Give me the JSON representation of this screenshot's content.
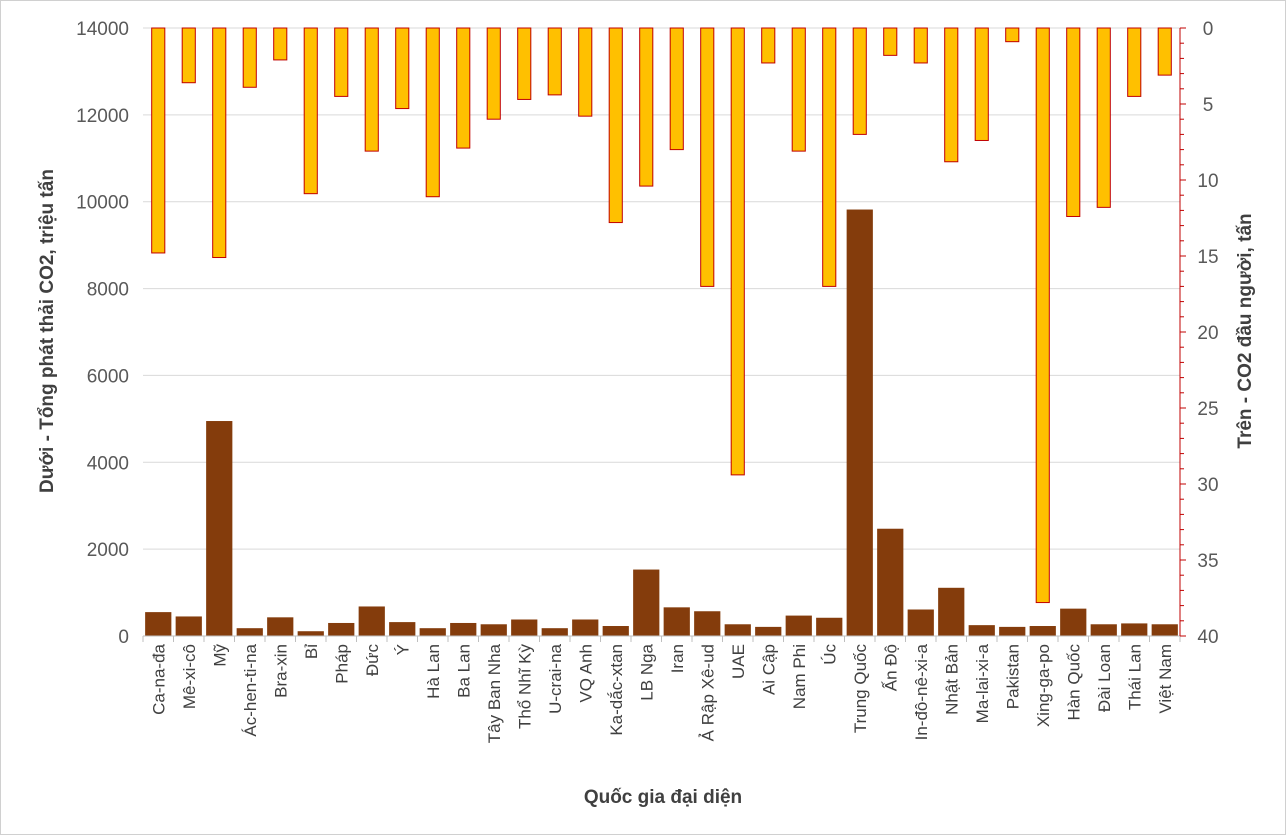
{
  "chart_data": {
    "type": "bar",
    "title": "",
    "xlabel": "Quốc gia đại diện",
    "ylabel_left": "Dưới - Tổng phát thải CO2, triệu tấn",
    "ylabel_right": "Trên - CO2 đầu người, tấn",
    "y_left_lim": [
      0,
      14000
    ],
    "y_left_ticks": [
      "0",
      "2000",
      "4000",
      "6000",
      "8000",
      "10000",
      "12000",
      "14000"
    ],
    "y_right_lim": [
      0,
      40
    ],
    "y_right_inverted": true,
    "y_right_ticks": [
      "0",
      "5",
      "10",
      "15",
      "20",
      "25",
      "30",
      "35",
      "40"
    ],
    "grid": "horizontal",
    "legend": "none",
    "colors": {
      "total": "#843C0C",
      "per_capita_fill": "#FFC000",
      "per_capita_edge": "#C00000"
    },
    "categories": [
      "Ca-na-đa",
      "Mê-xi-cô",
      "Mỹ",
      "Ác-hen-ti-na",
      "Bra-xin",
      "Bỉ",
      "Pháp",
      "Đức",
      "Ý",
      "Hà Lan",
      "Ba Lan",
      "Tây Ban Nha",
      "Thổ Nhĩ Kỳ",
      "U-crai-na",
      "VQ Anh",
      "Ka-dắc-xtan",
      "LB Nga",
      "Iran",
      "Ả Rập Xê-ud",
      "UAE",
      "Ai Cập",
      "Nam Phi",
      "Úc",
      "Trung Quốc",
      "Ấn Độ",
      "In-đô-nê-xi-a",
      "Nhật Bản",
      "Ma-lai-xi-a",
      "Pakistan",
      "Xing-ga-po",
      "Hàn Quốc",
      "Đài Loan",
      "Thái Lan",
      "Việt Nam"
    ],
    "series": [
      {
        "name": "Tổng phát thải CO2, triệu tấn",
        "axis": "left",
        "values": [
          550,
          450,
          4950,
          180,
          430,
          110,
          300,
          680,
          320,
          180,
          300,
          270,
          380,
          180,
          380,
          230,
          1530,
          660,
          570,
          270,
          210,
          470,
          420,
          9820,
          2470,
          610,
          1110,
          250,
          210,
          230,
          630,
          270,
          290,
          270
        ]
      },
      {
        "name": "CO2 đầu người, tấn",
        "axis": "right",
        "values": [
          14.8,
          3.6,
          15.1,
          3.9,
          2.1,
          10.9,
          4.5,
          8.1,
          5.3,
          11.1,
          7.9,
          6.0,
          4.7,
          4.4,
          5.8,
          12.8,
          10.4,
          8.0,
          17.0,
          29.4,
          2.3,
          8.1,
          17.0,
          7.0,
          1.8,
          2.3,
          8.8,
          7.4,
          0.9,
          37.8,
          12.4,
          11.8,
          4.5,
          3.1
        ]
      }
    ]
  }
}
